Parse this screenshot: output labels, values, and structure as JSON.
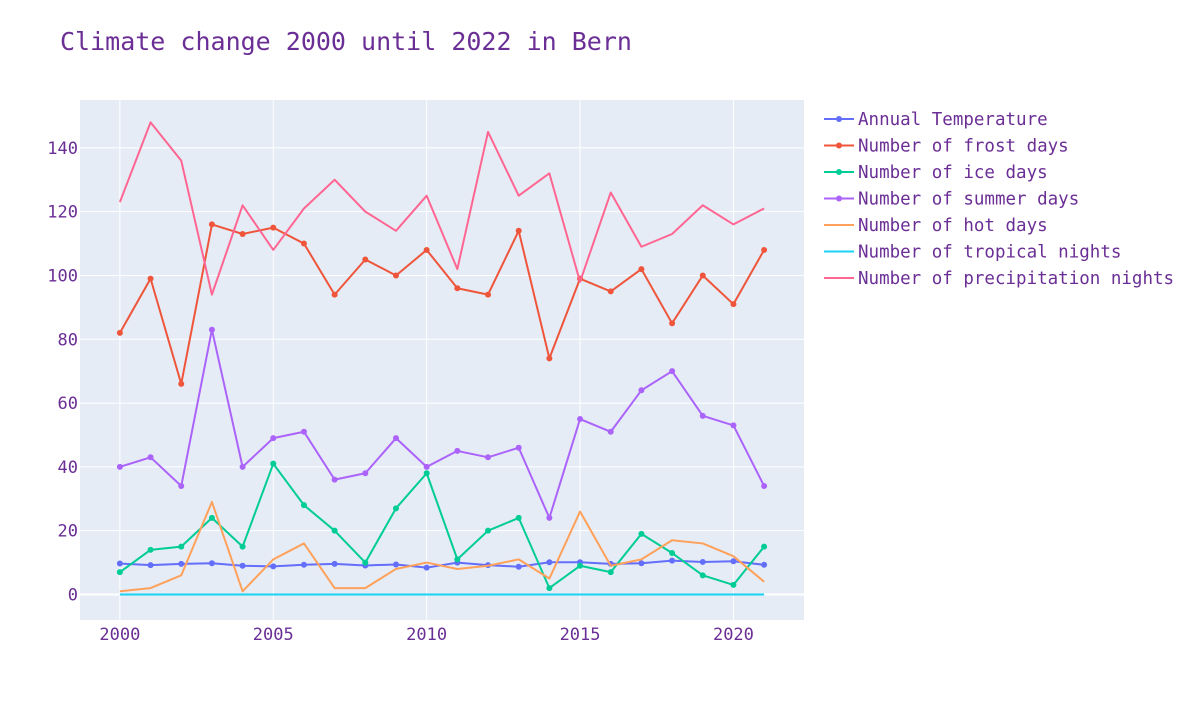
{
  "colors": {
    "text": "#6a2e95",
    "plot_background": "#e5ecf6",
    "grid": "#ffffff"
  },
  "chart_data": {
    "type": "line",
    "title": "Climate change 2000 until 2022 in Bern",
    "xlabel": "",
    "ylabel": "",
    "x": [
      2000,
      2001,
      2002,
      2003,
      2004,
      2005,
      2006,
      2007,
      2008,
      2009,
      2010,
      2011,
      2012,
      2013,
      2014,
      2015,
      2016,
      2017,
      2018,
      2019,
      2020,
      2021
    ],
    "xlim": [
      1998.7,
      2022.3
    ],
    "ylim": [
      -8,
      155
    ],
    "xticks": [
      2000,
      2005,
      2010,
      2015,
      2020
    ],
    "yticks": [
      0,
      20,
      40,
      60,
      80,
      100,
      120,
      140
    ],
    "grid": true,
    "legend_position": "right",
    "series": [
      {
        "name": "Annual Temperature",
        "color": "#636efa",
        "markers": true,
        "values": [
          9.7,
          9.2,
          9.6,
          9.8,
          9.0,
          8.8,
          9.3,
          9.6,
          9.1,
          9.4,
          8.4,
          10.0,
          9.2,
          8.7,
          10.1,
          10.1,
          9.6,
          9.8,
          10.6,
          10.2,
          10.4,
          9.3
        ]
      },
      {
        "name": "Number of frost days",
        "color": "#ef553b",
        "markers": true,
        "values": [
          82,
          99,
          66,
          116,
          113,
          115,
          110,
          94,
          105,
          100,
          108,
          96,
          94,
          114,
          74,
          99,
          95,
          102,
          85,
          100,
          91,
          108
        ]
      },
      {
        "name": "Number of ice days",
        "color": "#00cc96",
        "markers": true,
        "values": [
          7,
          14,
          15,
          24,
          15,
          41,
          28,
          20,
          10,
          27,
          38,
          11,
          20,
          24,
          2,
          9,
          7,
          19,
          13,
          6,
          3,
          15
        ]
      },
      {
        "name": "Number of summer days",
        "color": "#ab63fa",
        "markers": true,
        "values": [
          40,
          43,
          34,
          83,
          40,
          49,
          51,
          36,
          38,
          49,
          40,
          45,
          43,
          46,
          24,
          55,
          51,
          64,
          70,
          56,
          53,
          34
        ]
      },
      {
        "name": "Number of hot days",
        "color": "#ffa15a",
        "markers": false,
        "values": [
          1,
          2,
          6,
          29,
          1,
          11,
          16,
          2,
          2,
          8,
          10,
          8,
          9,
          11,
          5,
          26,
          9,
          11,
          17,
          16,
          12,
          4
        ]
      },
      {
        "name": "Number of tropical nights",
        "color": "#19d3f3",
        "markers": false,
        "values": [
          0,
          0,
          0,
          0,
          0,
          0,
          0,
          0,
          0,
          0,
          0,
          0,
          0,
          0,
          0,
          0,
          0,
          0,
          0,
          0,
          0,
          0
        ]
      },
      {
        "name": "Number of precipitation nights",
        "color": "#ff6692",
        "markers": false,
        "values": [
          123,
          148,
          136,
          94,
          122,
          108,
          121,
          130,
          120,
          114,
          125,
          102,
          145,
          125,
          132,
          98,
          126,
          109,
          113,
          122,
          116,
          121
        ]
      }
    ]
  }
}
